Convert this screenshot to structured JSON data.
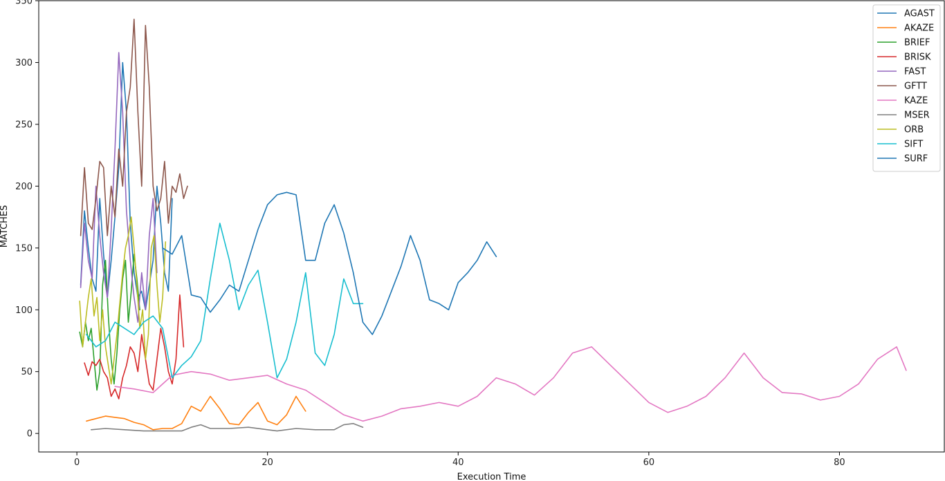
{
  "chart_data": {
    "type": "line",
    "title": "",
    "xlabel": "Execution Time",
    "ylabel": "MATCHES",
    "xlim": [
      -4,
      91
    ],
    "ylim": [
      -15,
      350
    ],
    "xticks": [
      0,
      20,
      40,
      60,
      80
    ],
    "yticks": [
      0,
      50,
      100,
      150,
      200,
      250,
      300,
      350
    ],
    "grid": false,
    "legend_position": "top-right",
    "series": [
      {
        "name": "AGAST",
        "color": "#1f77b4",
        "x": [
          0.4,
          0.8,
          1.2,
          1.6,
          2.0,
          2.4,
          2.8,
          3.2,
          3.6,
          4.0,
          4.4,
          4.8,
          5.2,
          5.6,
          6.0,
          6.4,
          6.8,
          7.2,
          7.6,
          8.0,
          8.4,
          8.8,
          9.2,
          9.6,
          10.0
        ],
        "y": [
          120,
          180,
          150,
          125,
          115,
          190,
          145,
          110,
          140,
          175,
          215,
          300,
          260,
          170,
          130,
          110,
          115,
          100,
          120,
          140,
          200,
          170,
          130,
          115,
          190
        ]
      },
      {
        "name": "AKAZE",
        "color": "#ff7f0e",
        "x": [
          1.0,
          2.0,
          3.0,
          4.0,
          5.0,
          6.0,
          7.0,
          8.0,
          9.0,
          10.0,
          11.0,
          12.0,
          13.0,
          14.0,
          15.0,
          16.0,
          17.0,
          18.0,
          19.0,
          20.0,
          21.0,
          22.0,
          23.0,
          24.0
        ],
        "y": [
          10,
          12,
          14,
          13,
          12,
          9,
          7,
          3,
          4,
          4,
          8,
          22,
          18,
          30,
          20,
          8,
          7,
          17,
          25,
          10,
          7,
          15,
          30,
          18
        ]
      },
      {
        "name": "BRIEF",
        "color": "#2ca02c",
        "x": [
          0.3,
          0.6,
          0.9,
          1.2,
          1.5,
          1.8,
          2.1,
          2.4,
          2.7,
          3.0,
          3.3,
          3.6,
          3.9,
          4.2,
          4.5,
          4.8,
          5.1,
          5.4,
          5.7,
          6.0,
          6.3,
          6.6
        ],
        "y": [
          82,
          70,
          90,
          75,
          85,
          60,
          35,
          50,
          120,
          140,
          95,
          60,
          40,
          65,
          100,
          125,
          140,
          90,
          115,
          145,
          125,
          100
        ]
      },
      {
        "name": "BRISK",
        "color": "#d62728",
        "x": [
          0.8,
          1.2,
          1.6,
          2.0,
          2.4,
          2.8,
          3.2,
          3.6,
          4.0,
          4.4,
          4.8,
          5.2,
          5.6,
          6.0,
          6.4,
          6.8,
          7.2,
          7.6,
          8.0,
          8.4,
          8.8,
          9.2,
          9.6,
          10.0,
          10.4,
          10.8,
          11.2
        ],
        "y": [
          57,
          47,
          58,
          55,
          60,
          50,
          45,
          30,
          36,
          28,
          45,
          55,
          70,
          65,
          50,
          80,
          60,
          40,
          35,
          60,
          85,
          70,
          50,
          40,
          60,
          112,
          70
        ]
      },
      {
        "name": "FAST",
        "color": "#9467bd",
        "x": [
          0.4,
          0.8,
          1.2,
          1.6,
          2.0,
          2.4,
          2.8,
          3.2,
          3.6,
          4.0,
          4.4,
          4.8,
          5.2,
          5.6,
          6.0,
          6.4,
          6.8,
          7.2,
          7.6,
          8.0,
          8.4
        ],
        "y": [
          118,
          170,
          140,
          125,
          200,
          160,
          130,
          110,
          165,
          230,
          308,
          260,
          180,
          140,
          110,
          90,
          130,
          100,
          160,
          190,
          130
        ]
      },
      {
        "name": "GFTT",
        "color": "#8c564b",
        "x": [
          0.4,
          0.8,
          1.2,
          1.6,
          2.0,
          2.4,
          2.8,
          3.2,
          3.6,
          4.0,
          4.4,
          4.8,
          5.2,
          5.6,
          6.0,
          6.4,
          6.8,
          7.2,
          7.6,
          8.0,
          8.4,
          8.8,
          9.2,
          9.6,
          10.0,
          10.4,
          10.8,
          11.2,
          11.6
        ],
        "y": [
          160,
          215,
          170,
          165,
          190,
          220,
          215,
          160,
          200,
          175,
          230,
          200,
          260,
          280,
          335,
          260,
          200,
          330,
          280,
          200,
          180,
          190,
          220,
          170,
          200,
          195,
          210,
          190,
          200
        ]
      },
      {
        "name": "KAZE",
        "color": "#e377c2",
        "x": [
          4,
          6,
          8,
          10,
          12,
          14,
          16,
          18,
          20,
          22,
          24,
          26,
          28,
          30,
          32,
          34,
          36,
          38,
          40,
          42,
          44,
          46,
          48,
          50,
          52,
          54,
          56,
          58,
          60,
          62,
          64,
          66,
          68,
          70,
          72,
          74,
          76,
          78,
          80,
          82,
          84,
          86,
          87
        ],
        "y": [
          38,
          36,
          33,
          47,
          50,
          48,
          43,
          45,
          47,
          40,
          35,
          25,
          15,
          10,
          14,
          20,
          22,
          25,
          22,
          30,
          45,
          40,
          31,
          45,
          65,
          70,
          55,
          40,
          25,
          17,
          22,
          30,
          45,
          65,
          45,
          33,
          32,
          27,
          30,
          40,
          60,
          70,
          51
        ]
      },
      {
        "name": "MSER",
        "color": "#7f7f7f",
        "x": [
          1.5,
          3,
          5,
          7,
          9,
          11,
          12,
          13,
          14,
          16,
          18,
          20,
          21,
          23,
          25,
          27,
          28,
          29,
          30
        ],
        "y": [
          3,
          4,
          3,
          2,
          2,
          2,
          5,
          7,
          4,
          4,
          5,
          3,
          2,
          4,
          3,
          3,
          7,
          8,
          5
        ]
      },
      {
        "name": "ORB",
        "color": "#bcbd22",
        "x": [
          0.3,
          0.6,
          0.9,
          1.2,
          1.5,
          1.8,
          2.1,
          2.4,
          2.7,
          3.0,
          3.3,
          3.6,
          3.9,
          4.2,
          4.5,
          4.8,
          5.1,
          5.4,
          5.7,
          6.0,
          6.3,
          6.6,
          6.9,
          7.2,
          7.5,
          7.8,
          8.1,
          8.4,
          8.7,
          9.0,
          9.3
        ],
        "y": [
          107,
          70,
          90,
          110,
          125,
          95,
          110,
          75,
          100,
          70,
          55,
          40,
          60,
          80,
          105,
          130,
          150,
          160,
          175,
          150,
          120,
          85,
          100,
          60,
          80,
          150,
          160,
          120,
          90,
          110,
          155
        ]
      },
      {
        "name": "SIFT",
        "color": "#17becf",
        "x": [
          1,
          2,
          3,
          4,
          5,
          6,
          7,
          8,
          9,
          10,
          11,
          12,
          13,
          14,
          15,
          16,
          17,
          18,
          19,
          20,
          21,
          22,
          23,
          24,
          25,
          26,
          27,
          28,
          29,
          30
        ],
        "y": [
          80,
          70,
          75,
          90,
          85,
          80,
          90,
          95,
          85,
          45,
          55,
          62,
          75,
          125,
          170,
          140,
          100,
          120,
          132,
          90,
          45,
          60,
          90,
          130,
          65,
          55,
          80,
          125,
          105,
          105
        ]
      },
      {
        "name": "SURF",
        "color": "#1f77b4",
        "x": [
          9,
          10,
          11,
          12,
          13,
          14,
          15,
          16,
          17,
          18,
          19,
          20,
          21,
          22,
          23,
          24,
          25,
          26,
          27,
          28,
          29,
          30,
          31,
          32,
          33,
          34,
          35,
          36,
          37,
          38,
          39,
          40,
          41,
          42,
          43,
          44
        ],
        "y": [
          150,
          145,
          160,
          112,
          110,
          98,
          108,
          120,
          115,
          140,
          165,
          185,
          193,
          195,
          193,
          140,
          140,
          170,
          185,
          162,
          130,
          90,
          80,
          95,
          115,
          135,
          160,
          140,
          108,
          105,
          100,
          122,
          130,
          140,
          155,
          143
        ]
      }
    ]
  }
}
